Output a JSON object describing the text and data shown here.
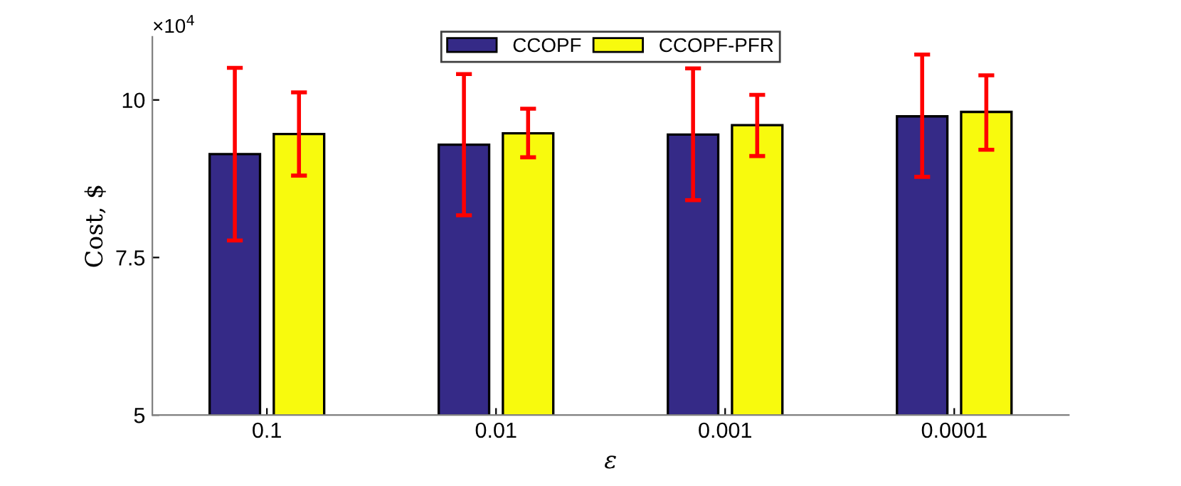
{
  "chart_data": {
    "type": "bar",
    "xlabel": "ε",
    "ylabel": "Cost, $",
    "categories": [
      "0.1",
      "0.01",
      "0.001",
      "0.0001"
    ],
    "series": [
      {
        "name": "CCOPF",
        "color": "#352a87",
        "values": [
          9.14,
          9.29,
          9.45,
          9.74
        ],
        "errors": [
          [
            7.77,
            10.51
          ],
          [
            8.17,
            10.41
          ],
          [
            8.41,
            10.5
          ],
          [
            8.78,
            10.72
          ]
        ]
      },
      {
        "name": "CCOPF-PFR",
        "color": "#f8fa0d",
        "values": [
          9.46,
          9.47,
          9.6,
          9.81
        ],
        "errors": [
          [
            8.8,
            10.12
          ],
          [
            9.09,
            9.86
          ],
          [
            9.11,
            10.08
          ],
          [
            9.21,
            10.39
          ]
        ]
      }
    ],
    "ylim": [
      5,
      11
    ],
    "yticks": [
      5,
      7.5,
      10
    ],
    "annotations": [
      "×10$^{4}$"
    ],
    "grid": false,
    "legend": "top"
  }
}
